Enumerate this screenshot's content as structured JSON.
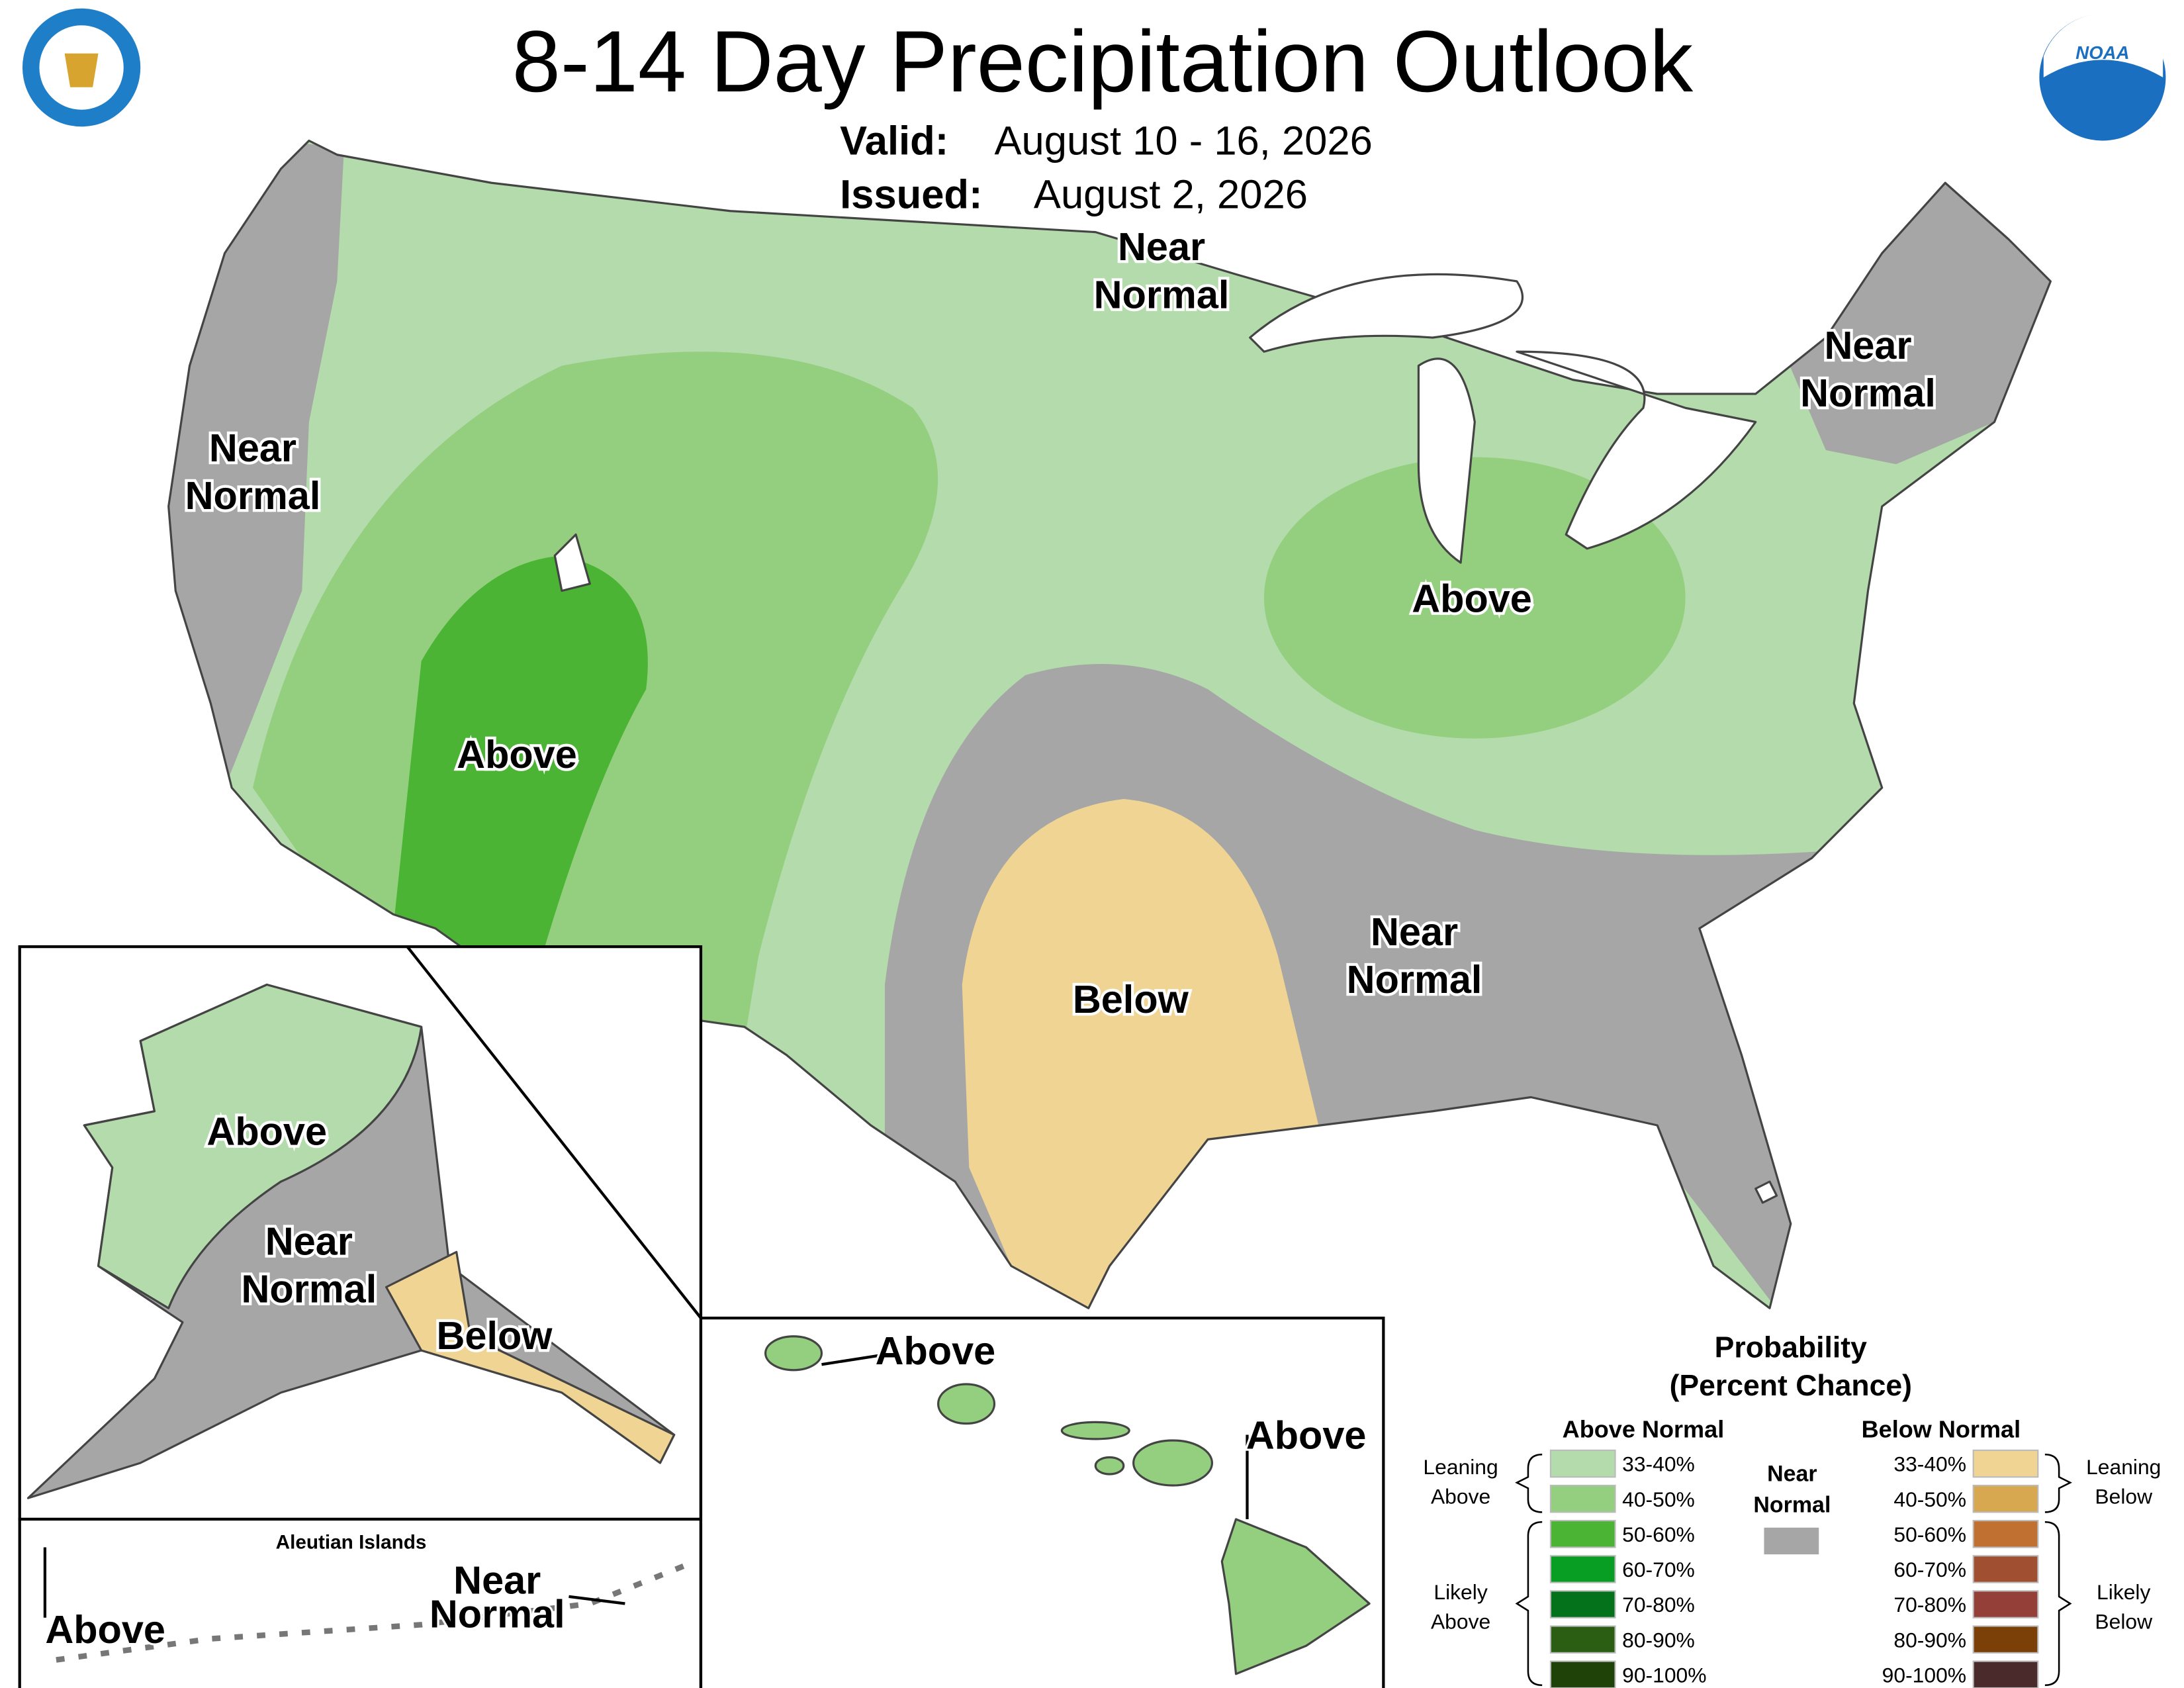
{
  "header": {
    "title": "8-14 Day Precipitation Outlook",
    "valid_label": "Valid:",
    "valid": "August 10 - 16, 2026",
    "issued_label": "Issued:",
    "issued": "August 2, 2026"
  },
  "logos": {
    "noaa": "NOAA"
  },
  "map_labels": [
    [
      "Near",
      "Normal"
    ],
    [
      "Near",
      "Normal"
    ],
    [
      "Near",
      "Normal"
    ],
    [
      "Above"
    ],
    [
      "Above"
    ],
    [
      "Below"
    ],
    [
      "Near",
      "Normal"
    ],
    [
      "Above"
    ],
    [
      "Near",
      "Normal"
    ],
    [
      "Below"
    ],
    [
      "Near",
      "Normal"
    ],
    [
      "Above"
    ],
    [
      "Above"
    ],
    [
      "Above"
    ]
  ],
  "aleutian_title": "Aleutian Islands",
  "legend": {
    "title": [
      "Probability",
      "(Percent Chance)"
    ],
    "above_header": "Above Normal",
    "below_header": "Below Normal",
    "near": {
      "label": [
        "Near",
        "Normal"
      ],
      "color": "#a6a6a6"
    },
    "above": [
      {
        "range": "33-40%",
        "color": "#b3dbab"
      },
      {
        "range": "40-50%",
        "color": "#93cf7e"
      },
      {
        "range": "50-60%",
        "color": "#4bb434"
      },
      {
        "range": "60-70%",
        "color": "#089e24"
      },
      {
        "range": "70-80%",
        "color": "#04721a"
      },
      {
        "range": "80-90%",
        "color": "#2b5e12"
      },
      {
        "range": "90-100%",
        "color": "#1f4208"
      }
    ],
    "below": [
      {
        "range": "33-40%",
        "color": "#f0d494"
      },
      {
        "range": "40-50%",
        "color": "#d8a850"
      },
      {
        "range": "50-60%",
        "color": "#c07030"
      },
      {
        "range": "60-70%",
        "color": "#a05030"
      },
      {
        "range": "70-80%",
        "color": "#944038"
      },
      {
        "range": "80-90%",
        "color": "#7a4008"
      },
      {
        "range": "90-100%",
        "color": "#4a2a2a"
      }
    ],
    "leaning_above": [
      "Leaning",
      "Above"
    ],
    "likely_above": [
      "Likely",
      "Above"
    ],
    "leaning_below": [
      "Leaning",
      "Below"
    ],
    "likely_below": [
      "Likely",
      "Below"
    ]
  }
}
